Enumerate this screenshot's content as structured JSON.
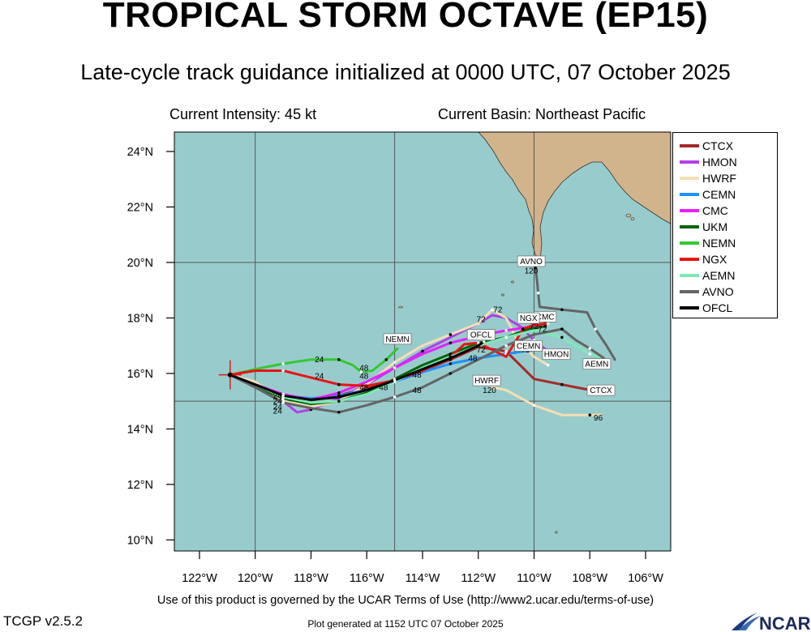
{
  "header": {
    "title": "TROPICAL STORM OCTAVE (EP15)",
    "subtitle": "Late-cycle track guidance initialized at 0000 UTC, 07 October 2025",
    "intensity": "Current Intensity: 45 kt",
    "basin": "Current Basin: Northeast Pacific"
  },
  "footer": {
    "terms": "Use of this product is governed by the UCAR Terms of Use (http://www2.ucar.edu/terms-of-use)",
    "version": "TCGP v2.5.2",
    "generated": "Plot generated at 1152 UTC   07 October 2025",
    "logo": "NCAR"
  },
  "colors": {
    "ocean": "#98cccc",
    "land": "#d2b48c",
    "grid": "#555555"
  },
  "chart_data": {
    "type": "line",
    "x_unit": "longitude (deg, negative = W)",
    "y_unit": "latitude (deg N)",
    "xlim": [
      -122.9,
      -105.1
    ],
    "ylim": [
      9.6,
      24.7
    ],
    "lon_ticks": [
      {
        "v": -122,
        "label": "122°W"
      },
      {
        "v": -120,
        "label": "120°W"
      },
      {
        "v": -118,
        "label": "118°W"
      },
      {
        "v": -116,
        "label": "116°W"
      },
      {
        "v": -114,
        "label": "114°W"
      },
      {
        "v": -112,
        "label": "112°W"
      },
      {
        "v": -110,
        "label": "110°W"
      },
      {
        "v": -108,
        "label": "108°W"
      },
      {
        "v": -106,
        "label": "106°W"
      }
    ],
    "lat_ticks": [
      {
        "v": 10,
        "label": "10°N"
      },
      {
        "v": 12,
        "label": "12°N"
      },
      {
        "v": 14,
        "label": "14°N"
      },
      {
        "v": 16,
        "label": "16°N"
      },
      {
        "v": 18,
        "label": "18°N"
      },
      {
        "v": 20,
        "label": "20°N"
      },
      {
        "v": 22,
        "label": "22°N"
      },
      {
        "v": 24,
        "label": "24°N"
      }
    ],
    "grid_lons": [
      -120,
      -115,
      -110
    ],
    "grid_lats": [
      15,
      20
    ],
    "current_position": {
      "lon": -120.9,
      "lat": 15.95
    },
    "series": [
      {
        "name": "CTCX",
        "color": "#a52a2a",
        "points": [
          [
            -120.9,
            15.95
          ],
          [
            -120,
            15.5
          ],
          [
            -119,
            15.15
          ],
          [
            -118,
            15.05
          ],
          [
            -117,
            15.2
          ],
          [
            -116,
            15.5
          ],
          [
            -115,
            15.75
          ],
          [
            -114,
            16.1
          ],
          [
            -113,
            16.5
          ],
          [
            -112,
            16.95
          ],
          [
            -111,
            16.8
          ],
          [
            -110,
            15.8
          ],
          [
            -109,
            15.6
          ],
          [
            -108,
            15.4
          ]
        ],
        "label": "CTCX",
        "label_pos": [
          -107.6,
          15.35
        ]
      },
      {
        "name": "HMON",
        "color": "#b040e8",
        "points": [
          [
            -120.9,
            15.95
          ],
          [
            -120,
            15.5
          ],
          [
            -119,
            15.0
          ],
          [
            -118.5,
            14.6
          ],
          [
            -118,
            14.7
          ],
          [
            -117,
            15.1
          ],
          [
            -116,
            15.6
          ],
          [
            -115,
            16.2
          ],
          [
            -114,
            16.8
          ],
          [
            -113,
            17.3
          ],
          [
            -112,
            17.8
          ],
          [
            -111.5,
            18.1
          ],
          [
            -111,
            18.0
          ],
          [
            -110.5,
            17.7
          ],
          [
            -110,
            17.2
          ],
          [
            -109.5,
            16.8
          ],
          [
            -109,
            16.75
          ]
        ],
        "label": "HMON",
        "label_pos": [
          -109.2,
          16.65
        ]
      },
      {
        "name": "HWRF",
        "color": "#f5deb3",
        "points": [
          [
            -120.9,
            15.95
          ],
          [
            -120,
            15.7
          ],
          [
            -119,
            15.0
          ],
          [
            -118,
            14.8
          ],
          [
            -117,
            15.0
          ],
          [
            -116,
            15.6
          ],
          [
            -115,
            16.4
          ],
          [
            -114,
            17.0
          ],
          [
            -113,
            17.4
          ],
          [
            -112,
            17.8
          ],
          [
            -111.5,
            18.3
          ],
          [
            -111,
            18.0
          ],
          [
            -110.6,
            17.2
          ],
          [
            -110,
            16.6
          ],
          [
            -109.5,
            16.3
          ]
        ],
        "label": "",
        "label_pos": null
      },
      {
        "name": "HWRF2",
        "color": "#f5deb3",
        "points": [
          [
            -111.5,
            15.5
          ],
          [
            -111,
            15.4
          ],
          [
            -110,
            14.85
          ],
          [
            -109,
            14.5
          ],
          [
            -108,
            14.5
          ],
          [
            -107.6,
            14.5
          ]
        ],
        "label": "HWRF",
        "label_pos": [
          -111.7,
          15.7
        ]
      },
      {
        "name": "CEMN",
        "color": "#1e90ff",
        "points": [
          [
            -120.9,
            15.95
          ],
          [
            -120,
            15.6
          ],
          [
            -119,
            15.2
          ],
          [
            -118,
            15.1
          ],
          [
            -117,
            15.2
          ],
          [
            -116,
            15.4
          ],
          [
            -115,
            15.7
          ],
          [
            -114,
            16.05
          ],
          [
            -113,
            16.35
          ],
          [
            -112,
            16.55
          ],
          [
            -111,
            16.7
          ],
          [
            -110,
            16.85
          ],
          [
            -109.8,
            16.95
          ]
        ],
        "label": "CEMN",
        "label_pos": [
          -110.2,
          16.95
        ]
      },
      {
        "name": "CMC",
        "color": "#e81eff",
        "points": [
          [
            -120.9,
            15.95
          ],
          [
            -120,
            15.6
          ],
          [
            -119,
            15.25
          ],
          [
            -118,
            15.05
          ],
          [
            -117,
            15.3
          ],
          [
            -116,
            15.7
          ],
          [
            -115,
            16.2
          ],
          [
            -114,
            16.7
          ],
          [
            -113,
            17.1
          ],
          [
            -112,
            17.35
          ],
          [
            -111,
            17.55
          ],
          [
            -110,
            17.7
          ],
          [
            -109.6,
            17.8
          ]
        ],
        "label": "CMC",
        "label_pos": [
          -109.6,
          18.0
        ]
      },
      {
        "name": "UKM",
        "color": "#006400",
        "points": [
          [
            -120.9,
            15.95
          ],
          [
            -120,
            15.55
          ],
          [
            -119,
            15.1
          ],
          [
            -118,
            14.9
          ],
          [
            -117,
            15.0
          ],
          [
            -116,
            15.3
          ],
          [
            -115,
            15.8
          ],
          [
            -114,
            16.3
          ],
          [
            -113,
            16.7
          ],
          [
            -112,
            17.1
          ],
          [
            -111,
            17.3
          ],
          [
            -110.2,
            17.6
          ],
          [
            -109.6,
            17.7
          ]
        ],
        "label": "",
        "label_pos": null
      },
      {
        "name": "NEMN",
        "color": "#32c832",
        "points": [
          [
            -120.9,
            15.95
          ],
          [
            -120,
            16.15
          ],
          [
            -119,
            16.35
          ],
          [
            -118,
            16.5
          ],
          [
            -117,
            16.5
          ],
          [
            -116.5,
            16.3
          ],
          [
            -116.2,
            16.05
          ],
          [
            -115.8,
            16.1
          ],
          [
            -115.3,
            16.5
          ],
          [
            -114.9,
            16.9
          ]
        ],
        "label": "NEMN",
        "label_pos": [
          -114.9,
          17.2
        ]
      },
      {
        "name": "NGX",
        "color": "#e81414",
        "points": [
          [
            -120.9,
            15.95
          ],
          [
            -120,
            16.1
          ],
          [
            -119,
            16.1
          ],
          [
            -118,
            15.85
          ],
          [
            -117,
            15.6
          ],
          [
            -116,
            15.55
          ],
          [
            -115,
            15.75
          ],
          [
            -114,
            16.1
          ],
          [
            -113,
            16.6
          ],
          [
            -112.5,
            17.05
          ],
          [
            -112,
            17.1
          ],
          [
            -111,
            16.6
          ],
          [
            -110.4,
            17.6
          ],
          [
            -110,
            17.75
          ],
          [
            -109.5,
            17.8
          ]
        ],
        "label": "NGX",
        "label_pos": [
          -110.2,
          17.95
        ]
      },
      {
        "name": "AEMN",
        "color": "#7fe8b8",
        "points": [
          [
            -120.9,
            15.95
          ],
          [
            -120,
            15.6
          ],
          [
            -119,
            15.15
          ],
          [
            -118,
            14.95
          ],
          [
            -117,
            15.0
          ],
          [
            -116,
            15.25
          ],
          [
            -115,
            15.7
          ],
          [
            -114,
            16.2
          ],
          [
            -113,
            16.6
          ],
          [
            -112,
            17.0
          ],
          [
            -111,
            17.3
          ],
          [
            -110,
            17.55
          ],
          [
            -109,
            17.3
          ],
          [
            -108.5,
            17.0
          ],
          [
            -108,
            16.7
          ],
          [
            -107.5,
            16.55
          ]
        ],
        "label": "AEMN",
        "label_pos": [
          -107.75,
          16.3
        ]
      },
      {
        "name": "AVNO",
        "color": "#646464",
        "points": [
          [
            -120.9,
            15.95
          ],
          [
            -120,
            15.5
          ],
          [
            -119,
            14.95
          ],
          [
            -118,
            14.75
          ],
          [
            -117,
            14.6
          ],
          [
            -116,
            14.85
          ],
          [
            -115,
            15.15
          ],
          [
            -114,
            15.5
          ],
          [
            -113,
            16.0
          ],
          [
            -112,
            16.5
          ],
          [
            -111,
            17.0
          ],
          [
            -110,
            17.4
          ],
          [
            -109,
            17.6
          ],
          [
            -108.5,
            17.2
          ],
          [
            -108,
            16.9
          ],
          [
            -107.5,
            16.55
          ]
        ],
        "label": "",
        "label_pos": null
      },
      {
        "name": "AVNO2",
        "color": "#646464",
        "points": [
          [
            -107.1,
            16.5
          ],
          [
            -107.4,
            17.0
          ],
          [
            -107.8,
            17.6
          ],
          [
            -108.1,
            18.2
          ],
          [
            -109.0,
            18.3
          ],
          [
            -109.8,
            18.4
          ],
          [
            -109.85,
            18.9
          ],
          [
            -109.9,
            19.4
          ],
          [
            -109.95,
            19.8
          ]
        ],
        "label": "AVNO",
        "label_pos": [
          -110.1,
          20.0
        ]
      },
      {
        "name": "OFCL",
        "color": "#000000",
        "points": [
          [
            -120.9,
            15.95
          ],
          [
            -120,
            15.6
          ],
          [
            -119,
            15.2
          ],
          [
            -118,
            15.05
          ],
          [
            -117,
            15.15
          ],
          [
            -116,
            15.4
          ],
          [
            -115,
            15.75
          ],
          [
            -114,
            16.15
          ],
          [
            -113,
            16.55
          ],
          [
            -112,
            17.0
          ],
          [
            -111.8,
            17.15
          ]
        ],
        "label": "OFCL",
        "label_pos": [
          -111.9,
          17.35
        ]
      }
    ],
    "legend": [
      "CTCX",
      "HMON",
      "HWRF",
      "CEMN",
      "CMC",
      "UKM",
      "NEMN",
      "NGX",
      "AEMN",
      "AVNO",
      "OFCL"
    ],
    "hour_labels": [
      {
        "t": "24",
        "lon": -117.7,
        "lat": 16.4
      },
      {
        "t": "24",
        "lon": -117.7,
        "lat": 15.8
      },
      {
        "t": "24",
        "lon": -119.2,
        "lat": 15.1
      },
      {
        "t": "24",
        "lon": -119.2,
        "lat": 14.9
      },
      {
        "t": "24",
        "lon": -119.2,
        "lat": 14.7
      },
      {
        "t": "24",
        "lon": -119.2,
        "lat": 14.55
      },
      {
        "t": "48",
        "lon": -116.1,
        "lat": 16.1
      },
      {
        "t": "48",
        "lon": -116.1,
        "lat": 15.8
      },
      {
        "t": "48",
        "lon": -116.1,
        "lat": 15.4
      },
      {
        "t": "48",
        "lon": -115.4,
        "lat": 15.4
      },
      {
        "t": "48",
        "lon": -114.2,
        "lat": 15.85
      },
      {
        "t": "48",
        "lon": -114.2,
        "lat": 15.3
      },
      {
        "t": "48",
        "lon": -112.2,
        "lat": 16.45
      },
      {
        "t": "72",
        "lon": -111.3,
        "lat": 18.2
      },
      {
        "t": "72",
        "lon": -111.9,
        "lat": 17.85
      },
      {
        "t": "72",
        "lon": -111.9,
        "lat": 16.75
      },
      {
        "t": "72",
        "lon": -110.3,
        "lat": 16.75
      },
      {
        "t": "72",
        "lon": -110.0,
        "lat": 17.6
      },
      {
        "t": "72",
        "lon": -109.7,
        "lat": 17.5
      },
      {
        "t": "96",
        "lon": -107.7,
        "lat": 14.3
      },
      {
        "t": "96",
        "lon": -107.45,
        "lat": 16.3
      },
      {
        "t": "120",
        "lon": -111.6,
        "lat": 15.3
      },
      {
        "t": "120",
        "lon": -110.1,
        "lat": 19.6
      }
    ]
  }
}
